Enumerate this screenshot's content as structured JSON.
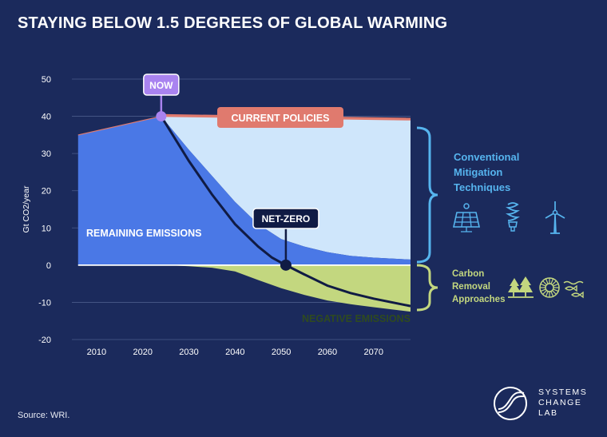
{
  "title": "STAYING BELOW 1.5 DEGREES OF GLOBAL WARMING",
  "source": "Source: WRI.",
  "logo": {
    "line1": "SYSTEMS",
    "line2": "CHANGE",
    "line3": "LAB"
  },
  "colors": {
    "background": "#1b2a5c",
    "remaining": "#4a78e6",
    "mitigation": "#cfe6fb",
    "negative": "#c3d77f",
    "current_policies": "#e07a6e",
    "pathway_line": "#101b44",
    "now": "#a983f0",
    "bracket_blue": "#56b4ee",
    "bracket_green": "#c3d77f"
  },
  "chart_data": {
    "type": "area",
    "ylabel": "Gt CO2/year",
    "xlim": [
      2005,
      2078
    ],
    "ylim": [
      -20,
      50
    ],
    "yticks": [
      50,
      40,
      30,
      20,
      10,
      0,
      -10,
      -20
    ],
    "xticks": [
      2010,
      2020,
      2030,
      2040,
      2050,
      2060,
      2070
    ],
    "grid": true,
    "historical": {
      "x": [
        2006,
        2024
      ],
      "y": [
        35,
        40
      ]
    },
    "current_policies": {
      "x": [
        2024,
        2078
      ],
      "y": [
        40,
        39
      ]
    },
    "mitigation_pathway": {
      "x": [
        2024,
        2030,
        2035,
        2040,
        2045,
        2050,
        2055,
        2060,
        2065,
        2070,
        2078
      ],
      "y": [
        40,
        31,
        24,
        17,
        11,
        7,
        5,
        3.5,
        2.5,
        2,
        1.5
      ]
    },
    "net_emissions": {
      "x": [
        2024,
        2030,
        2035,
        2040,
        2045,
        2048,
        2051,
        2055,
        2060,
        2065,
        2070,
        2078
      ],
      "y": [
        40,
        28,
        19,
        11,
        5,
        2,
        0,
        -2.5,
        -5.5,
        -7.5,
        -9,
        -11
      ]
    },
    "negative_emissions": {
      "x": [
        2006,
        2025,
        2030,
        2035,
        2040,
        2045,
        2050,
        2055,
        2060,
        2065,
        2070,
        2078
      ],
      "y": [
        0,
        0,
        -0.3,
        -0.7,
        -1.7,
        -4,
        -6.2,
        -8,
        -9.5,
        -10.5,
        -11.3,
        -12.5
      ]
    },
    "annotations": {
      "now": {
        "label": "NOW",
        "x": 2024,
        "y": 40
      },
      "net_zero": {
        "label": "NET-ZERO",
        "x": 2051,
        "y": 0
      },
      "current_policies": "CURRENT POLICIES",
      "remaining": "REMAINING EMISSIONS",
      "negative": "NEGATIVE EMISSIONS",
      "conventional": [
        "Conventional",
        "Mitigation",
        "Techniques"
      ],
      "carbon_removal": [
        "Carbon",
        "Removal",
        "Approaches"
      ]
    },
    "icons": [
      "solar-panel-icon",
      "light-bulb-icon",
      "wind-turbine-icon",
      "trees-icon",
      "sunflower-icon",
      "fish-icon"
    ]
  }
}
